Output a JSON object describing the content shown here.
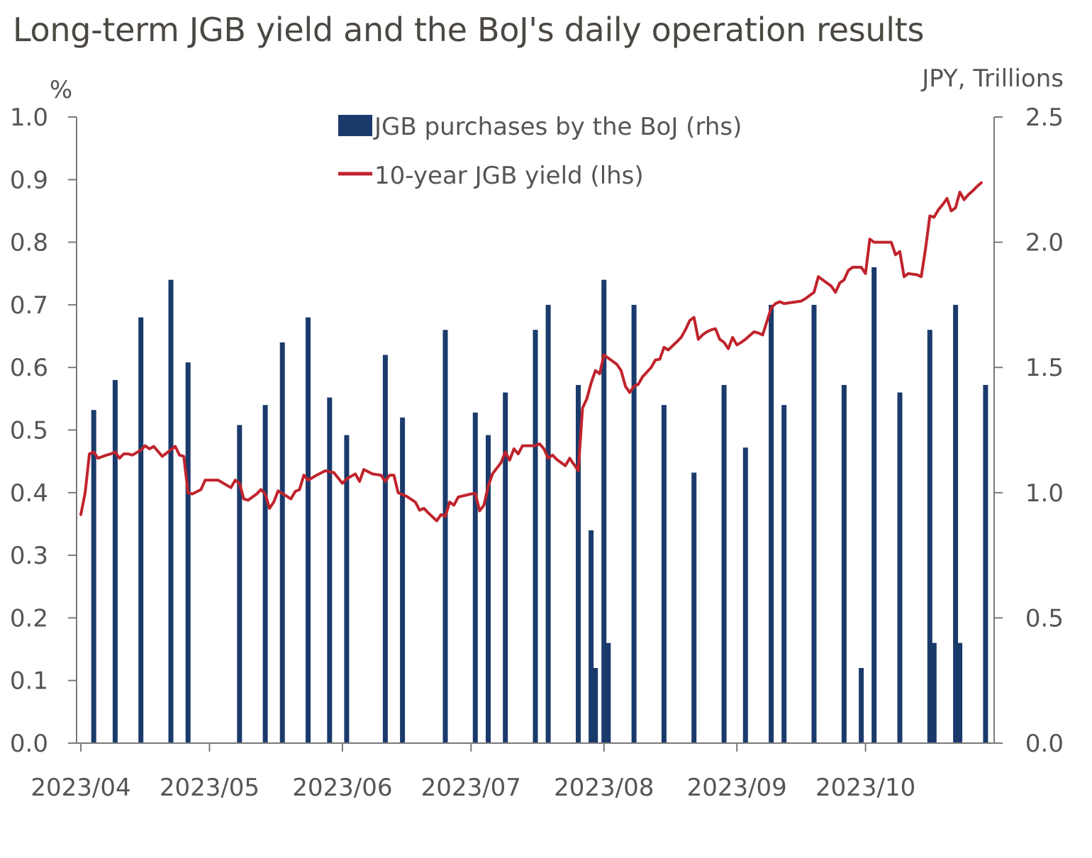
{
  "chart_data": {
    "type": "bar+line",
    "title": "Long-term JGB yield and the BoJ's daily operation results",
    "left_axis": {
      "unit": "%",
      "ylim": [
        0,
        1.0
      ],
      "ticks": [
        "0.0",
        "0.1",
        "0.2",
        "0.3",
        "0.4",
        "0.5",
        "0.6",
        "0.7",
        "0.8",
        "0.9",
        "1.0"
      ]
    },
    "right_axis": {
      "unit": "JPY, Trillions",
      "ylim": [
        0,
        2.5
      ],
      "ticks": [
        "0.0",
        "0.5",
        "1.0",
        "1.5",
        "2.0",
        "2.5"
      ]
    },
    "x_axis": {
      "ticks": [
        "2023/04",
        "2023/05",
        "2023/06",
        "2023/07",
        "2023/08",
        "2023/09",
        "2023/10"
      ],
      "range": [
        "2023-03-31",
        "2023-10-31"
      ]
    },
    "legend": [
      {
        "label": "JGB purchases by the BoJ (rhs)",
        "color": "#1a3a6b",
        "kind": "bar"
      },
      {
        "label": "10-year JGB yield (lhs)",
        "color": "#c0232c",
        "kind": "line"
      }
    ],
    "series": [
      {
        "name": "JGB purchases by the BoJ (rhs)",
        "axis": "right",
        "color": "#1a3a6b",
        "points": [
          [
            "2023-04-04",
            1.33
          ],
          [
            "2023-04-09",
            1.45
          ],
          [
            "2023-04-15",
            1.7
          ],
          [
            "2023-04-22",
            1.85
          ],
          [
            "2023-04-26",
            1.52
          ],
          [
            "2023-05-08",
            1.27
          ],
          [
            "2023-05-14",
            1.35
          ],
          [
            "2023-05-18",
            1.6
          ],
          [
            "2023-05-24",
            1.7
          ],
          [
            "2023-05-29",
            1.38
          ],
          [
            "2023-06-02",
            1.23
          ],
          [
            "2023-06-11",
            1.55
          ],
          [
            "2023-06-15",
            1.3
          ],
          [
            "2023-06-25",
            1.65
          ],
          [
            "2023-07-02",
            1.32
          ],
          [
            "2023-07-05",
            1.23
          ],
          [
            "2023-07-09",
            1.4
          ],
          [
            "2023-07-16",
            1.65
          ],
          [
            "2023-07-19",
            1.75
          ],
          [
            "2023-07-26",
            1.43
          ],
          [
            "2023-07-29",
            0.85
          ],
          [
            "2023-07-30",
            0.3
          ],
          [
            "2023-08-01",
            1.85
          ],
          [
            "2023-08-02",
            0.4
          ],
          [
            "2023-08-08",
            1.75
          ],
          [
            "2023-08-15",
            1.35
          ],
          [
            "2023-08-22",
            1.08
          ],
          [
            "2023-08-29",
            1.43
          ],
          [
            "2023-09-03",
            1.18
          ],
          [
            "2023-09-09",
            1.75
          ],
          [
            "2023-09-12",
            1.35
          ],
          [
            "2023-09-19",
            1.75
          ],
          [
            "2023-09-26",
            1.43
          ],
          [
            "2023-09-30",
            0.3
          ],
          [
            "2023-10-03",
            1.9
          ],
          [
            "2023-10-09",
            1.4
          ],
          [
            "2023-10-16",
            1.65
          ],
          [
            "2023-10-17",
            0.4
          ],
          [
            "2023-10-22",
            1.75
          ],
          [
            "2023-10-23",
            0.4
          ],
          [
            "2023-10-29",
            1.43
          ]
        ]
      },
      {
        "name": "10-year JGB yield (lhs)",
        "axis": "left",
        "color": "#c0232c",
        "points": [
          [
            "2023-04-01",
            0.365
          ],
          [
            "2023-04-02",
            0.4
          ],
          [
            "2023-04-03",
            0.462
          ],
          [
            "2023-04-04",
            0.465
          ],
          [
            "2023-04-05",
            0.455
          ],
          [
            "2023-04-07",
            0.46
          ],
          [
            "2023-04-08",
            0.462
          ],
          [
            "2023-04-09",
            0.465
          ],
          [
            "2023-04-10",
            0.455
          ],
          [
            "2023-04-11",
            0.462
          ],
          [
            "2023-04-12",
            0.462
          ],
          [
            "2023-04-13",
            0.46
          ],
          [
            "2023-04-15",
            0.468
          ],
          [
            "2023-04-16",
            0.475
          ],
          [
            "2023-04-17",
            0.47
          ],
          [
            "2023-04-18",
            0.474
          ],
          [
            "2023-04-20",
            0.458
          ],
          [
            "2023-04-23",
            0.474
          ],
          [
            "2023-04-24",
            0.46
          ],
          [
            "2023-04-25",
            0.458
          ],
          [
            "2023-04-26",
            0.4
          ],
          [
            "2023-04-27",
            0.398
          ],
          [
            "2023-04-29",
            0.405
          ],
          [
            "2023-04-30",
            0.42
          ],
          [
            "2023-05-01",
            0.42
          ],
          [
            "2023-05-03",
            0.42
          ],
          [
            "2023-05-06",
            0.408
          ],
          [
            "2023-05-07",
            0.42
          ],
          [
            "2023-05-08",
            0.415
          ],
          [
            "2023-05-09",
            0.39
          ],
          [
            "2023-05-10",
            0.388
          ],
          [
            "2023-05-12",
            0.398
          ],
          [
            "2023-05-13",
            0.405
          ],
          [
            "2023-05-14",
            0.398
          ],
          [
            "2023-05-15",
            0.375
          ],
          [
            "2023-05-16",
            0.385
          ],
          [
            "2023-05-17",
            0.403
          ],
          [
            "2023-05-20",
            0.39
          ],
          [
            "2023-05-21",
            0.402
          ],
          [
            "2023-05-22",
            0.405
          ],
          [
            "2023-05-23",
            0.428
          ],
          [
            "2023-05-24",
            0.42
          ],
          [
            "2023-05-26",
            0.428
          ],
          [
            "2023-05-28",
            0.435
          ],
          [
            "2023-05-30",
            0.432
          ],
          [
            "2023-06-01",
            0.415
          ],
          [
            "2023-06-02",
            0.422
          ],
          [
            "2023-06-04",
            0.43
          ],
          [
            "2023-06-05",
            0.418
          ],
          [
            "2023-06-06",
            0.437
          ],
          [
            "2023-06-08",
            0.43
          ],
          [
            "2023-06-10",
            0.428
          ],
          [
            "2023-06-11",
            0.418
          ],
          [
            "2023-06-12",
            0.428
          ],
          [
            "2023-06-13",
            0.428
          ],
          [
            "2023-06-14",
            0.4
          ],
          [
            "2023-06-16",
            0.394
          ],
          [
            "2023-06-18",
            0.385
          ],
          [
            "2023-06-19",
            0.372
          ],
          [
            "2023-06-20",
            0.375
          ],
          [
            "2023-06-21",
            0.368
          ],
          [
            "2023-06-23",
            0.355
          ],
          [
            "2023-06-24",
            0.365
          ],
          [
            "2023-06-25",
            0.362
          ],
          [
            "2023-06-26",
            0.385
          ],
          [
            "2023-06-27",
            0.38
          ],
          [
            "2023-06-28",
            0.393
          ],
          [
            "2023-07-01",
            0.398
          ],
          [
            "2023-07-02",
            0.399
          ],
          [
            "2023-07-03",
            0.371
          ],
          [
            "2023-07-04",
            0.38
          ],
          [
            "2023-07-05",
            0.41
          ],
          [
            "2023-07-06",
            0.43
          ],
          [
            "2023-07-08",
            0.448
          ],
          [
            "2023-07-09",
            0.465
          ],
          [
            "2023-07-10",
            0.452
          ],
          [
            "2023-07-11",
            0.47
          ],
          [
            "2023-07-12",
            0.462
          ],
          [
            "2023-07-13",
            0.475
          ],
          [
            "2023-07-16",
            0.475
          ],
          [
            "2023-07-17",
            0.478
          ],
          [
            "2023-07-18",
            0.47
          ],
          [
            "2023-07-19",
            0.455
          ],
          [
            "2023-07-20",
            0.46
          ],
          [
            "2023-07-21",
            0.453
          ],
          [
            "2023-07-23",
            0.443
          ],
          [
            "2023-07-24",
            0.455
          ],
          [
            "2023-07-26",
            0.435
          ],
          [
            "2023-07-27",
            0.535
          ],
          [
            "2023-07-28",
            0.55
          ],
          [
            "2023-07-29",
            0.575
          ],
          [
            "2023-07-30",
            0.595
          ],
          [
            "2023-07-31",
            0.59
          ],
          [
            "2023-08-01",
            0.62
          ],
          [
            "2023-08-02",
            0.615
          ],
          [
            "2023-08-04",
            0.605
          ],
          [
            "2023-08-05",
            0.595
          ],
          [
            "2023-08-06",
            0.57
          ],
          [
            "2023-08-07",
            0.56
          ],
          [
            "2023-08-08",
            0.57
          ],
          [
            "2023-08-09",
            0.573
          ],
          [
            "2023-08-10",
            0.585
          ],
          [
            "2023-08-12",
            0.6
          ],
          [
            "2023-08-13",
            0.612
          ],
          [
            "2023-08-14",
            0.613
          ],
          [
            "2023-08-15",
            0.632
          ],
          [
            "2023-08-16",
            0.628
          ],
          [
            "2023-08-18",
            0.641
          ],
          [
            "2023-08-19",
            0.648
          ],
          [
            "2023-08-20",
            0.66
          ],
          [
            "2023-08-21",
            0.675
          ],
          [
            "2023-08-22",
            0.68
          ],
          [
            "2023-08-23",
            0.645
          ],
          [
            "2023-08-24",
            0.652
          ],
          [
            "2023-08-25",
            0.657
          ],
          [
            "2023-08-26",
            0.66
          ],
          [
            "2023-08-27",
            0.662
          ],
          [
            "2023-08-28",
            0.645
          ],
          [
            "2023-08-29",
            0.64
          ],
          [
            "2023-08-30",
            0.63
          ],
          [
            "2023-08-31",
            0.648
          ],
          [
            "2023-09-01",
            0.636
          ],
          [
            "2023-09-02",
            0.64
          ],
          [
            "2023-09-03",
            0.645
          ],
          [
            "2023-09-04",
            0.651
          ],
          [
            "2023-09-05",
            0.657
          ],
          [
            "2023-09-06",
            0.655
          ],
          [
            "2023-09-07",
            0.652
          ],
          [
            "2023-09-09",
            0.695
          ],
          [
            "2023-09-10",
            0.702
          ],
          [
            "2023-09-11",
            0.705
          ],
          [
            "2023-09-12",
            0.702
          ],
          [
            "2023-09-14",
            0.704
          ],
          [
            "2023-09-16",
            0.706
          ],
          [
            "2023-09-17",
            0.71
          ],
          [
            "2023-09-19",
            0.72
          ],
          [
            "2023-09-20",
            0.745
          ],
          [
            "2023-09-21",
            0.74
          ],
          [
            "2023-09-23",
            0.73
          ],
          [
            "2023-09-24",
            0.72
          ],
          [
            "2023-09-25",
            0.735
          ],
          [
            "2023-09-26",
            0.74
          ],
          [
            "2023-09-27",
            0.755
          ],
          [
            "2023-09-28",
            0.76
          ],
          [
            "2023-09-30",
            0.76
          ],
          [
            "2023-10-01",
            0.75
          ],
          [
            "2023-10-02",
            0.805
          ],
          [
            "2023-10-03",
            0.8
          ],
          [
            "2023-10-05",
            0.8
          ],
          [
            "2023-10-07",
            0.8
          ],
          [
            "2023-10-08",
            0.78
          ],
          [
            "2023-10-09",
            0.785
          ],
          [
            "2023-10-10",
            0.745
          ],
          [
            "2023-10-11",
            0.75
          ],
          [
            "2023-10-13",
            0.748
          ],
          [
            "2023-10-14",
            0.745
          ],
          [
            "2023-10-15",
            0.79
          ],
          [
            "2023-10-16",
            0.842
          ],
          [
            "2023-10-17",
            0.84
          ],
          [
            "2023-10-18",
            0.852
          ],
          [
            "2023-10-19",
            0.86
          ],
          [
            "2023-10-20",
            0.87
          ],
          [
            "2023-10-21",
            0.85
          ],
          [
            "2023-10-22",
            0.855
          ],
          [
            "2023-10-23",
            0.88
          ],
          [
            "2023-10-24",
            0.868
          ],
          [
            "2023-10-25",
            0.876
          ],
          [
            "2023-10-26",
            0.882
          ],
          [
            "2023-10-27",
            0.889
          ],
          [
            "2023-10-28",
            0.895
          ]
        ]
      }
    ]
  }
}
